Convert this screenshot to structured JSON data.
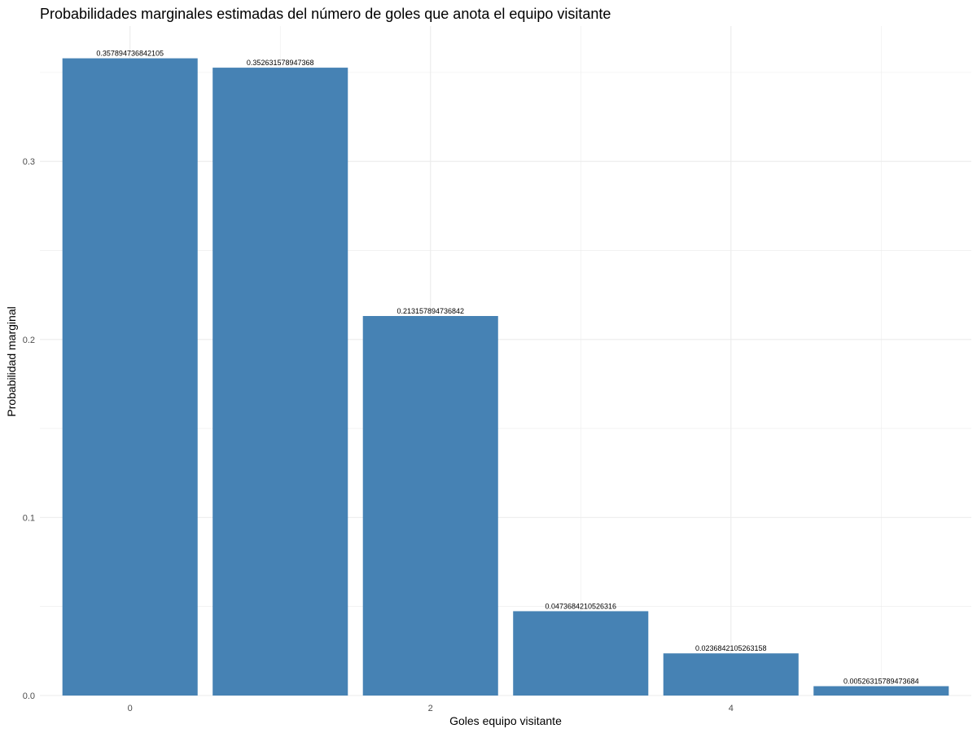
{
  "chart_data": {
    "type": "bar",
    "title": "Probabilidades marginales estimadas del número de goles que anota el equipo visitante",
    "xlabel": "Goles equipo visitante",
    "ylabel": "Probabilidad marginal",
    "categories": [
      0,
      1,
      2,
      3,
      4,
      5
    ],
    "values": [
      0.357894736842105,
      0.352631578947368,
      0.213157894736842,
      0.0473684210526316,
      0.0236842105263158,
      0.00526315789473684
    ],
    "data_labels": [
      "0.357894736842105",
      "0.352631578947368",
      "0.213157894736842",
      "0.0473684210526316",
      "0.0236842105263158",
      "0.00526315789473684"
    ],
    "x_ticks": [
      0,
      2,
      4
    ],
    "x_tick_labels": [
      "0",
      "2",
      "4"
    ],
    "y_ticks": [
      0.0,
      0.1,
      0.2,
      0.3
    ],
    "y_tick_labels": [
      "0.0",
      "0.1",
      "0.2",
      "0.3"
    ],
    "xlim": [
      -0.6,
      5.6
    ],
    "ylim": [
      0,
      0.376
    ],
    "grid": true,
    "legend": "none",
    "bar_color": "#4682b4",
    "grid_color": "#ebebeb"
  }
}
